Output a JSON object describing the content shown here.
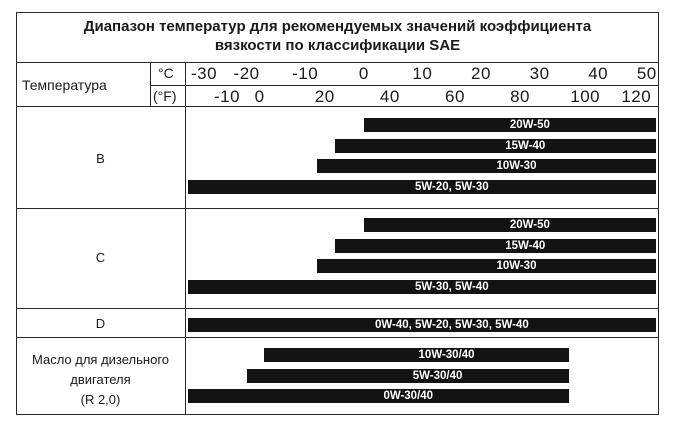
{
  "table": {
    "title_line1": "Диапазон температур для рекомендуемых значений коэффициента",
    "title_line2": "вязкости по классификации SAE",
    "temperature_label": "Температура",
    "unit_c": "°C",
    "unit_f": "(°F)",
    "celsius_ticks": [
      "-30",
      "-20",
      "-10",
      "0",
      "10",
      "20",
      "30",
      "40",
      "50"
    ],
    "fahrenheit_ticks": [
      "-10",
      "0",
      "20",
      "40",
      "60",
      "80",
      "100",
      "120"
    ],
    "rows": [
      {
        "label": "B",
        "bars": [
          {
            "label": "20W-50",
            "from_c": 0,
            "to_c": 50
          },
          {
            "label": "15W-40",
            "from_c": -5,
            "to_c": 50
          },
          {
            "label": "10W-30",
            "from_c": -8,
            "to_c": 50
          },
          {
            "label": "5W-20, 5W-30",
            "from_c": -30,
            "to_c": 50
          }
        ]
      },
      {
        "label": "C",
        "bars": [
          {
            "label": "20W-50",
            "from_c": 0,
            "to_c": 50
          },
          {
            "label": "15W-40",
            "from_c": -5,
            "to_c": 50
          },
          {
            "label": "10W-30",
            "from_c": -8,
            "to_c": 50
          },
          {
            "label": "5W-30, 5W-40",
            "from_c": -30,
            "to_c": 50
          }
        ]
      },
      {
        "label": "D",
        "bars": [
          {
            "label": "0W-40, 5W-20, 5W-30, 5W-40",
            "from_c": -30,
            "to_c": 50
          }
        ]
      },
      {
        "label_line1": "Масло для дизельного",
        "label_line2": "двигателя",
        "label_line3": "(R 2,0)",
        "bars": [
          {
            "label": "10W-30/40",
            "from_c": -17,
            "to_c": 35
          },
          {
            "label": "5W-30/40",
            "from_c": -20,
            "to_c": 35
          },
          {
            "label": "0W-30/40",
            "from_c": -30,
            "to_c": 35
          }
        ]
      }
    ]
  }
}
